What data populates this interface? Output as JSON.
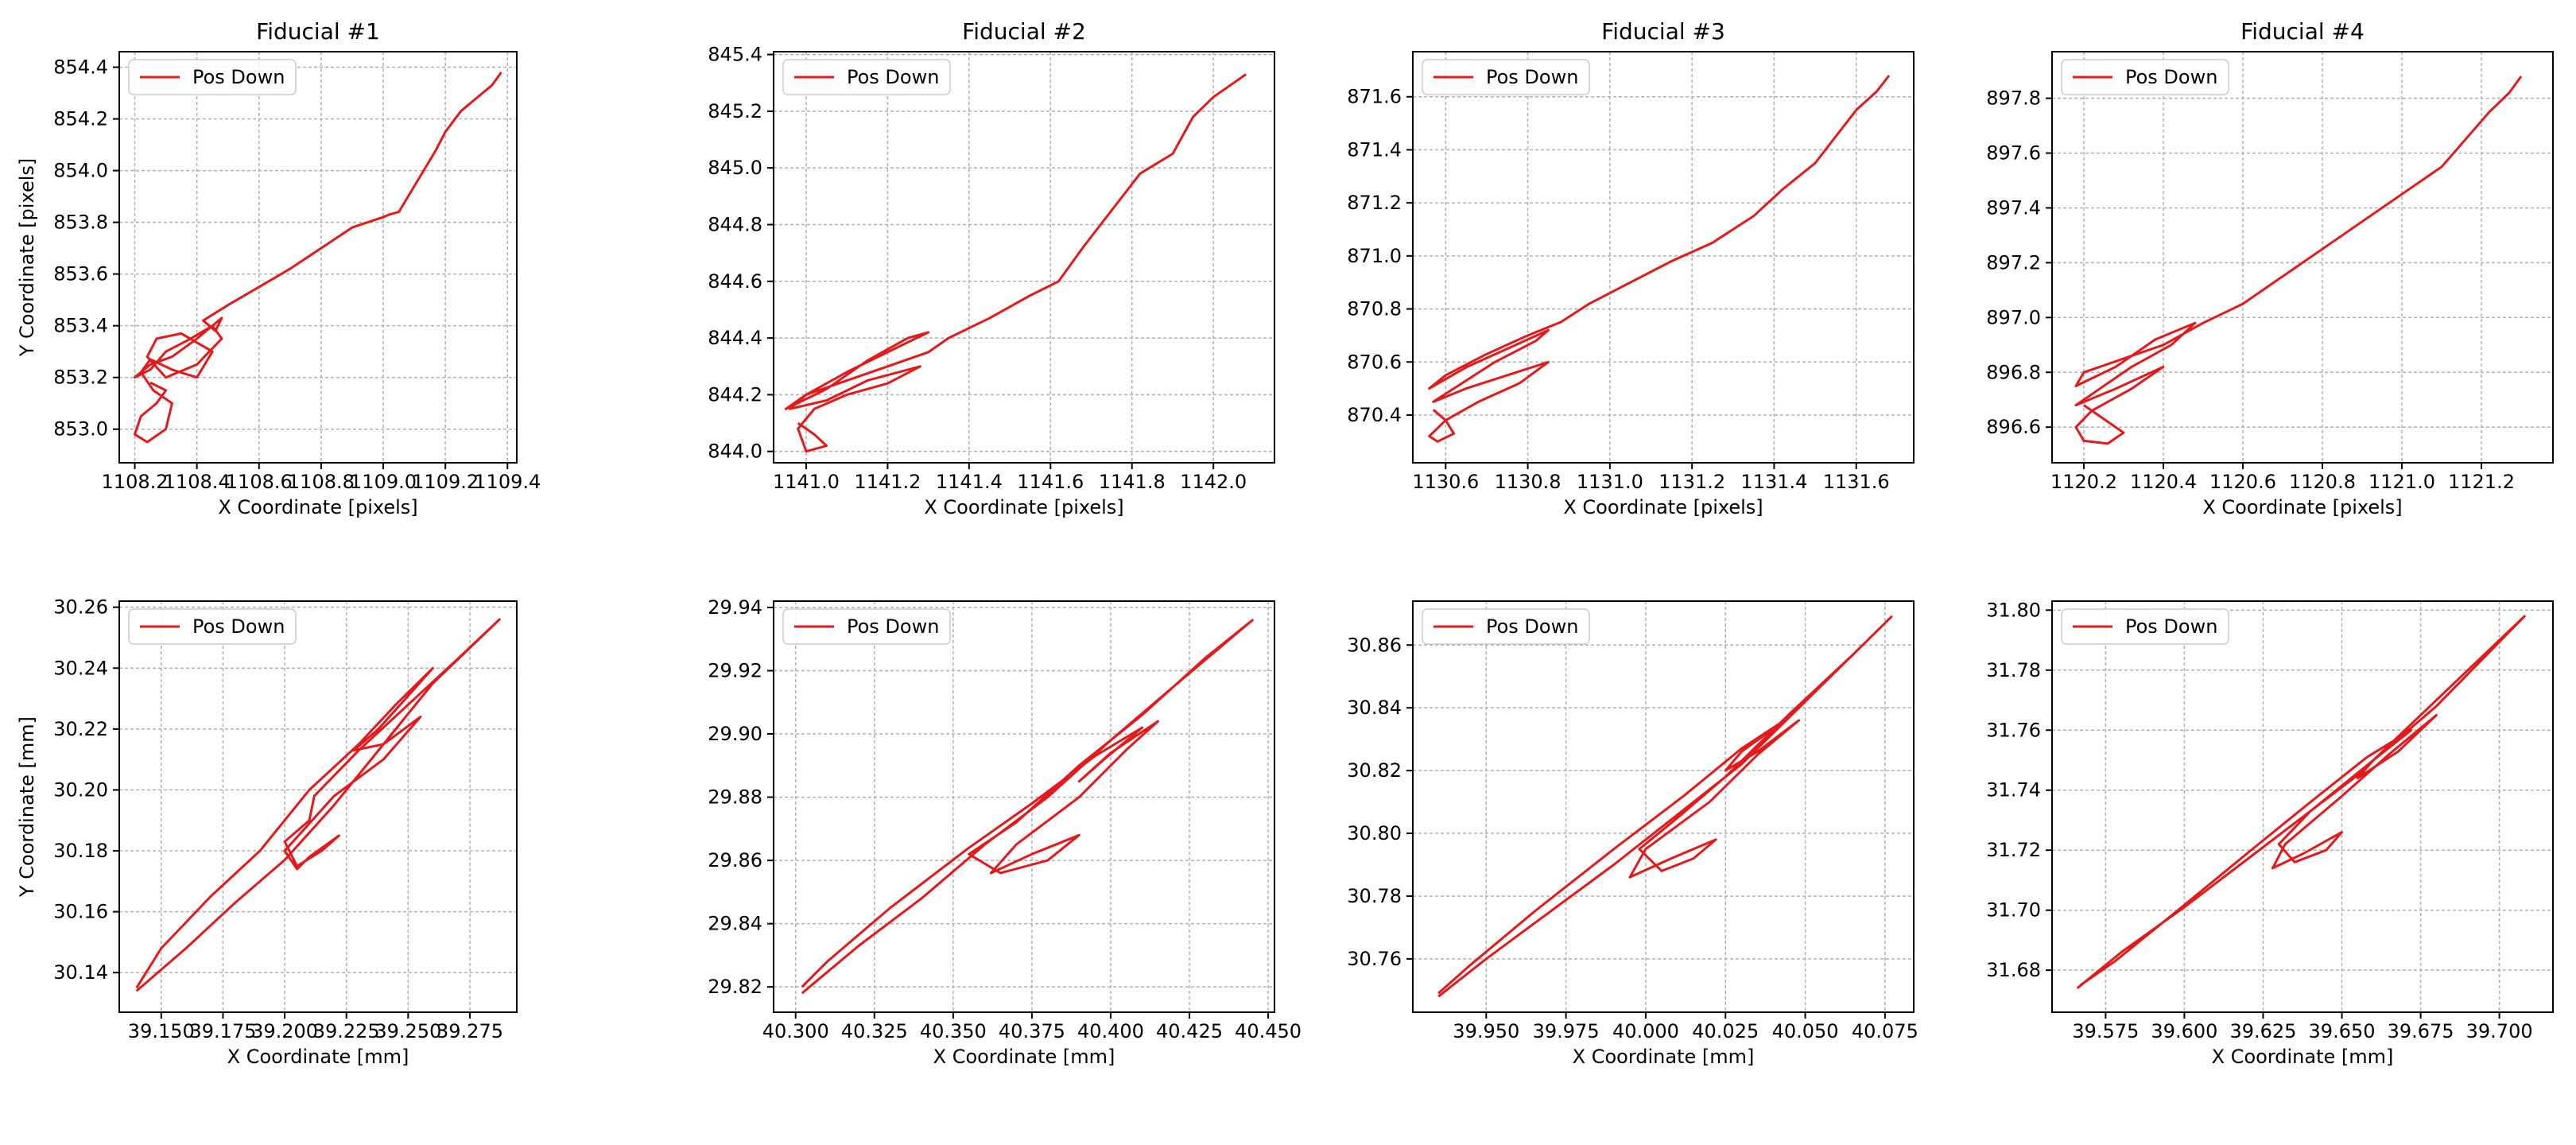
{
  "figure": {
    "line_color": "#e31a1c",
    "grid_color": "#b0b0b0"
  },
  "chart_data": [
    {
      "type": "line",
      "title": "Fiducial #1",
      "xlabel": "X Coordinate [pixels]",
      "ylabel": "Y Coordinate [pixels]",
      "xlim": [
        1108.15,
        1109.43
      ],
      "ylim": [
        852.87,
        854.46
      ],
      "xticks": [
        1108.2,
        1108.4,
        1108.6,
        1108.8,
        1109.0,
        1109.2,
        1109.4
      ],
      "xtick_labels": [
        "1108.2",
        "1108.4",
        "1108.6",
        "1108.8",
        "1109.0",
        "1109.2",
        "1109.4"
      ],
      "yticks": [
        853.0,
        853.2,
        853.4,
        853.6,
        853.8,
        854.0,
        854.2,
        854.4
      ],
      "ytick_labels": [
        "853.0",
        "853.2",
        "853.4",
        "853.6",
        "853.8",
        "854.0",
        "854.2",
        "854.4"
      ],
      "grid": true,
      "legend": "upper-left",
      "series": [
        {
          "name": "Pos Down",
          "x": [
            1109.38,
            1109.35,
            1109.3,
            1109.25,
            1109.2,
            1109.17,
            1109.12,
            1109.08,
            1109.06,
            1109.05,
            1109.02,
            1109.0,
            1108.9,
            1108.8,
            1108.7,
            1108.6,
            1108.5,
            1108.42,
            1108.46,
            1108.48,
            1108.4,
            1108.32,
            1108.25,
            1108.2,
            1108.25,
            1108.3,
            1108.38,
            1108.45,
            1108.48,
            1108.4,
            1108.3,
            1108.24,
            1108.27,
            1108.35,
            1108.45,
            1108.4,
            1108.32,
            1108.25,
            1108.22,
            1108.26,
            1108.32,
            1108.3,
            1108.24,
            1108.2,
            1108.22,
            1108.27,
            1108.3,
            1108.25
          ],
          "y": [
            854.38,
            854.33,
            854.28,
            854.23,
            854.15,
            854.08,
            853.98,
            853.9,
            853.86,
            853.84,
            853.83,
            853.82,
            853.78,
            853.7,
            853.62,
            853.55,
            853.48,
            853.42,
            853.38,
            853.43,
            853.35,
            853.28,
            853.25,
            853.2,
            853.23,
            853.3,
            853.35,
            853.4,
            853.35,
            853.25,
            853.2,
            853.28,
            853.35,
            853.37,
            853.3,
            853.2,
            853.23,
            853.27,
            853.22,
            853.15,
            853.1,
            853.0,
            852.95,
            852.98,
            853.05,
            853.1,
            853.15,
            853.18
          ]
        }
      ]
    },
    {
      "type": "line",
      "title": "Fiducial #2",
      "xlabel": "X Coordinate [pixels]",
      "ylabel": "",
      "xlim": [
        1140.92,
        1142.15
      ],
      "ylim": [
        843.96,
        845.41
      ],
      "xticks": [
        1141.0,
        1141.2,
        1141.4,
        1141.6,
        1141.8,
        1142.0
      ],
      "xtick_labels": [
        "1141.0",
        "1141.2",
        "1141.4",
        "1141.6",
        "1141.8",
        "1142.0"
      ],
      "yticks": [
        844.0,
        844.2,
        844.4,
        844.6,
        844.8,
        845.0,
        845.2,
        845.4
      ],
      "ytick_labels": [
        "844.0",
        "844.2",
        "844.4",
        "844.6",
        "844.8",
        "845.0",
        "845.2",
        "845.4"
      ],
      "grid": true,
      "legend": "upper-left",
      "series": [
        {
          "name": "Pos Down",
          "x": [
            1142.08,
            1142.05,
            1142.0,
            1141.95,
            1141.9,
            1141.82,
            1141.75,
            1141.68,
            1141.62,
            1141.55,
            1141.45,
            1141.35,
            1141.3,
            1141.2,
            1141.1,
            1141.0,
            1140.95,
            1141.05,
            1141.15,
            1141.25,
            1141.3,
            1141.2,
            1141.1,
            1141.0,
            1140.96,
            1141.05,
            1141.15,
            1141.28,
            1141.2,
            1141.1,
            1141.02,
            1140.98,
            1141.0,
            1141.05,
            1141.02,
            1140.98
          ],
          "y": [
            845.33,
            845.3,
            845.25,
            845.18,
            845.05,
            844.98,
            844.85,
            844.72,
            844.6,
            844.55,
            844.47,
            844.4,
            844.35,
            844.3,
            844.25,
            844.2,
            844.15,
            844.22,
            844.32,
            844.4,
            844.42,
            844.35,
            844.28,
            844.2,
            844.15,
            844.18,
            844.25,
            844.3,
            844.24,
            844.2,
            844.15,
            844.08,
            844.0,
            844.02,
            844.06,
            844.1
          ]
        }
      ]
    },
    {
      "type": "line",
      "title": "Fiducial #3",
      "xlabel": "X Coordinate [pixels]",
      "ylabel": "",
      "xlim": [
        1130.52,
        1131.74
      ],
      "ylim": [
        870.22,
        871.77
      ],
      "xticks": [
        1130.6,
        1130.8,
        1131.0,
        1131.2,
        1131.4,
        1131.6
      ],
      "xtick_labels": [
        "1130.6",
        "1130.8",
        "1131.0",
        "1131.2",
        "1131.4",
        "1131.6"
      ],
      "yticks": [
        870.4,
        870.6,
        870.8,
        871.0,
        871.2,
        871.4,
        871.6
      ],
      "ytick_labels": [
        "870.4",
        "870.6",
        "870.8",
        "871.0",
        "871.2",
        "871.4",
        "871.6"
      ],
      "grid": true,
      "legend": "upper-left",
      "series": [
        {
          "name": "Pos Down",
          "x": [
            1131.68,
            1131.65,
            1131.6,
            1131.55,
            1131.5,
            1131.42,
            1131.35,
            1131.25,
            1131.15,
            1131.05,
            1130.95,
            1130.88,
            1130.8,
            1130.7,
            1130.6,
            1130.56,
            1130.65,
            1130.75,
            1130.85,
            1130.82,
            1130.72,
            1130.62,
            1130.57,
            1130.65,
            1130.75,
            1130.85,
            1130.78,
            1130.68,
            1130.6,
            1130.56,
            1130.58,
            1130.62,
            1130.6,
            1130.57
          ],
          "y": [
            871.68,
            871.62,
            871.55,
            871.45,
            871.35,
            871.25,
            871.15,
            871.05,
            870.98,
            870.9,
            870.82,
            870.75,
            870.7,
            870.63,
            870.55,
            870.5,
            870.58,
            870.65,
            870.72,
            870.68,
            870.6,
            870.5,
            870.45,
            870.5,
            870.55,
            870.6,
            870.52,
            870.45,
            870.38,
            870.32,
            870.3,
            870.33,
            870.38,
            870.42
          ]
        }
      ]
    },
    {
      "type": "line",
      "title": "Fiducial #4",
      "xlabel": "X Coordinate [pixels]",
      "ylabel": "",
      "xlim": [
        1120.12,
        1121.38
      ],
      "ylim": [
        896.47,
        897.97
      ],
      "xticks": [
        1120.2,
        1120.4,
        1120.6,
        1120.8,
        1121.0,
        1121.2
      ],
      "xtick_labels": [
        "1120.2",
        "1120.4",
        "1120.6",
        "1120.8",
        "1121.0",
        "1121.2"
      ],
      "yticks": [
        896.6,
        896.8,
        897.0,
        897.2,
        897.4,
        897.6,
        897.8
      ],
      "ytick_labels": [
        "896.6",
        "896.8",
        "897.0",
        "897.2",
        "897.4",
        "897.6",
        "897.8"
      ],
      "grid": true,
      "legend": "upper-left",
      "series": [
        {
          "name": "Pos Down",
          "x": [
            1121.3,
            1121.27,
            1121.22,
            1121.16,
            1121.1,
            1121.0,
            1120.9,
            1120.8,
            1120.7,
            1120.6,
            1120.5,
            1120.4,
            1120.3,
            1120.2,
            1120.18,
            1120.28,
            1120.38,
            1120.48,
            1120.42,
            1120.32,
            1120.22,
            1120.18,
            1120.28,
            1120.4,
            1120.32,
            1120.22,
            1120.18,
            1120.2,
            1120.26,
            1120.3,
            1120.25,
            1120.2
          ],
          "y": [
            897.88,
            897.82,
            897.75,
            897.65,
            897.55,
            897.45,
            897.35,
            897.25,
            897.15,
            897.05,
            896.98,
            896.9,
            896.85,
            896.8,
            896.75,
            896.82,
            896.92,
            896.98,
            896.9,
            896.82,
            896.72,
            896.68,
            896.74,
            896.82,
            896.74,
            896.66,
            896.6,
            896.55,
            896.54,
            896.58,
            896.63,
            896.68
          ]
        }
      ]
    },
    {
      "type": "line",
      "title": "",
      "xlabel": "X Coordinate [mm]",
      "ylabel": "Y Coordinate [mm]",
      "xlim": [
        39.133,
        39.294
      ],
      "ylim": [
        30.127,
        30.262
      ],
      "xticks": [
        39.15,
        39.175,
        39.2,
        39.225,
        39.25,
        39.275
      ],
      "xtick_labels": [
        "39.150",
        "39.175",
        "39.200",
        "39.225",
        "39.250",
        "39.275"
      ],
      "yticks": [
        30.14,
        30.16,
        30.18,
        30.2,
        30.22,
        30.24,
        30.26
      ],
      "ytick_labels": [
        "30.14",
        "30.16",
        "30.18",
        "30.20",
        "30.22",
        "30.24",
        "30.26"
      ],
      "grid": true,
      "legend": "upper-left",
      "series": [
        {
          "name": "Pos Down",
          "x": [
            39.14,
            39.16,
            39.18,
            39.2,
            39.22,
            39.24,
            39.26,
            39.287,
            39.27,
            39.25,
            39.23,
            39.212,
            39.21,
            39.2,
            39.205,
            39.215,
            39.222,
            39.21,
            39.205,
            39.2,
            39.22,
            39.24,
            39.255,
            39.24,
            39.228,
            39.238,
            39.26,
            39.245,
            39.23,
            39.21,
            39.19,
            39.17,
            39.15,
            39.14
          ],
          "y": [
            30.134,
            30.148,
            30.163,
            30.177,
            30.195,
            30.215,
            30.235,
            30.256,
            30.243,
            30.228,
            30.213,
            30.198,
            30.19,
            30.183,
            30.175,
            30.18,
            30.185,
            30.178,
            30.174,
            30.18,
            30.198,
            30.21,
            30.224,
            30.215,
            30.213,
            30.22,
            30.24,
            30.228,
            30.215,
            30.2,
            30.18,
            30.165,
            30.148,
            30.135
          ]
        }
      ]
    },
    {
      "type": "line",
      "title": "",
      "xlabel": "X Coordinate [mm]",
      "ylabel": "",
      "xlim": [
        40.293,
        40.452
      ],
      "ylim": [
        29.812,
        29.942
      ],
      "xticks": [
        40.3,
        40.325,
        40.35,
        40.375,
        40.4,
        40.425,
        40.45
      ],
      "xtick_labels": [
        "40.300",
        "40.325",
        "40.350",
        "40.375",
        "40.400",
        "40.425",
        "40.450"
      ],
      "yticks": [
        29.82,
        29.84,
        29.86,
        29.88,
        29.9,
        29.92,
        29.94
      ],
      "ytick_labels": [
        "29.82",
        "29.84",
        "29.86",
        "29.88",
        "29.90",
        "29.92",
        "29.94"
      ],
      "grid": true,
      "legend": "upper-left",
      "series": [
        {
          "name": "Pos Down",
          "x": [
            40.302,
            40.32,
            40.34,
            40.36,
            40.38,
            40.4,
            40.42,
            40.445,
            40.43,
            40.41,
            40.39,
            40.37,
            40.355,
            40.365,
            40.38,
            40.39,
            40.375,
            40.362,
            40.37,
            40.39,
            40.405,
            40.415,
            40.4,
            40.39,
            40.398,
            40.41,
            40.395,
            40.375,
            40.355,
            40.33,
            40.31,
            40.302
          ],
          "y": [
            29.818,
            29.833,
            29.848,
            29.865,
            29.88,
            29.898,
            29.915,
            29.936,
            29.924,
            29.906,
            29.89,
            29.872,
            29.862,
            29.856,
            29.86,
            29.868,
            29.862,
            29.856,
            29.865,
            29.88,
            29.895,
            29.904,
            29.894,
            29.885,
            29.892,
            29.902,
            29.893,
            29.878,
            29.864,
            29.845,
            29.828,
            29.82
          ]
        }
      ]
    },
    {
      "type": "line",
      "title": "",
      "xlabel": "X Coordinate [mm]",
      "ylabel": "",
      "xlim": [
        39.927,
        40.084
      ],
      "ylim": [
        30.743,
        30.874
      ],
      "xticks": [
        39.95,
        39.975,
        40.0,
        40.025,
        40.05,
        40.075
      ],
      "xtick_labels": [
        "39.950",
        "39.975",
        "40.000",
        "40.025",
        "40.050",
        "40.075"
      ],
      "yticks": [
        30.76,
        30.78,
        30.8,
        30.82,
        30.84,
        30.86
      ],
      "ytick_labels": [
        "30.76",
        "30.78",
        "30.80",
        "30.82",
        "30.84",
        "30.86"
      ],
      "grid": true,
      "legend": "upper-left",
      "series": [
        {
          "name": "Pos Down",
          "x": [
            39.935,
            39.95,
            39.97,
            39.99,
            40.01,
            40.03,
            40.05,
            40.077,
            40.065,
            40.045,
            40.025,
            40.01,
            39.998,
            40.005,
            40.015,
            40.022,
            40.008,
            39.995,
            40.0,
            40.02,
            40.035,
            40.048,
            40.035,
            40.025,
            40.03,
            40.045,
            40.03,
            40.012,
            39.99,
            39.965,
            39.945,
            39.935
          ],
          "y": [
            30.748,
            30.76,
            30.775,
            30.79,
            30.806,
            30.822,
            30.842,
            30.869,
            30.857,
            30.838,
            30.818,
            30.805,
            30.795,
            30.788,
            30.792,
            30.798,
            30.792,
            30.786,
            30.795,
            30.81,
            30.825,
            30.836,
            30.826,
            30.82,
            30.826,
            30.837,
            30.827,
            30.812,
            30.795,
            30.775,
            30.758,
            30.749
          ]
        }
      ]
    },
    {
      "type": "line",
      "title": "",
      "xlabel": "X Coordinate [mm]",
      "ylabel": "",
      "xlim": [
        39.558,
        39.717
      ],
      "ylim": [
        31.666,
        31.803
      ],
      "xticks": [
        39.575,
        39.6,
        39.625,
        39.65,
        39.675,
        39.7
      ],
      "xtick_labels": [
        "39.575",
        "39.600",
        "39.625",
        "39.650",
        "39.675",
        "39.700"
      ],
      "yticks": [
        31.68,
        31.7,
        31.72,
        31.74,
        31.76,
        31.78,
        31.8
      ],
      "ytick_labels": [
        "31.68",
        "31.70",
        "31.72",
        "31.74",
        "31.76",
        "31.78",
        "31.80"
      ],
      "grid": true,
      "legend": "upper-left",
      "series": [
        {
          "name": "Pos Down",
          "x": [
            39.566,
            39.58,
            39.6,
            39.62,
            39.64,
            39.66,
            39.68,
            39.708,
            39.695,
            39.675,
            39.655,
            39.64,
            39.63,
            39.635,
            39.645,
            39.65,
            39.638,
            39.628,
            39.632,
            39.65,
            39.665,
            39.68,
            39.668,
            39.655,
            39.66,
            39.672,
            39.658,
            39.64,
            39.62,
            39.598,
            39.578,
            39.567
          ],
          "y": [
            31.674,
            31.686,
            31.701,
            31.717,
            31.733,
            31.75,
            31.768,
            31.798,
            31.785,
            31.765,
            31.745,
            31.733,
            31.722,
            31.716,
            31.72,
            31.726,
            31.719,
            31.714,
            31.722,
            31.738,
            31.752,
            31.765,
            31.753,
            31.744,
            31.75,
            31.76,
            31.751,
            31.736,
            31.719,
            31.7,
            31.683,
            31.675
          ]
        }
      ]
    }
  ]
}
